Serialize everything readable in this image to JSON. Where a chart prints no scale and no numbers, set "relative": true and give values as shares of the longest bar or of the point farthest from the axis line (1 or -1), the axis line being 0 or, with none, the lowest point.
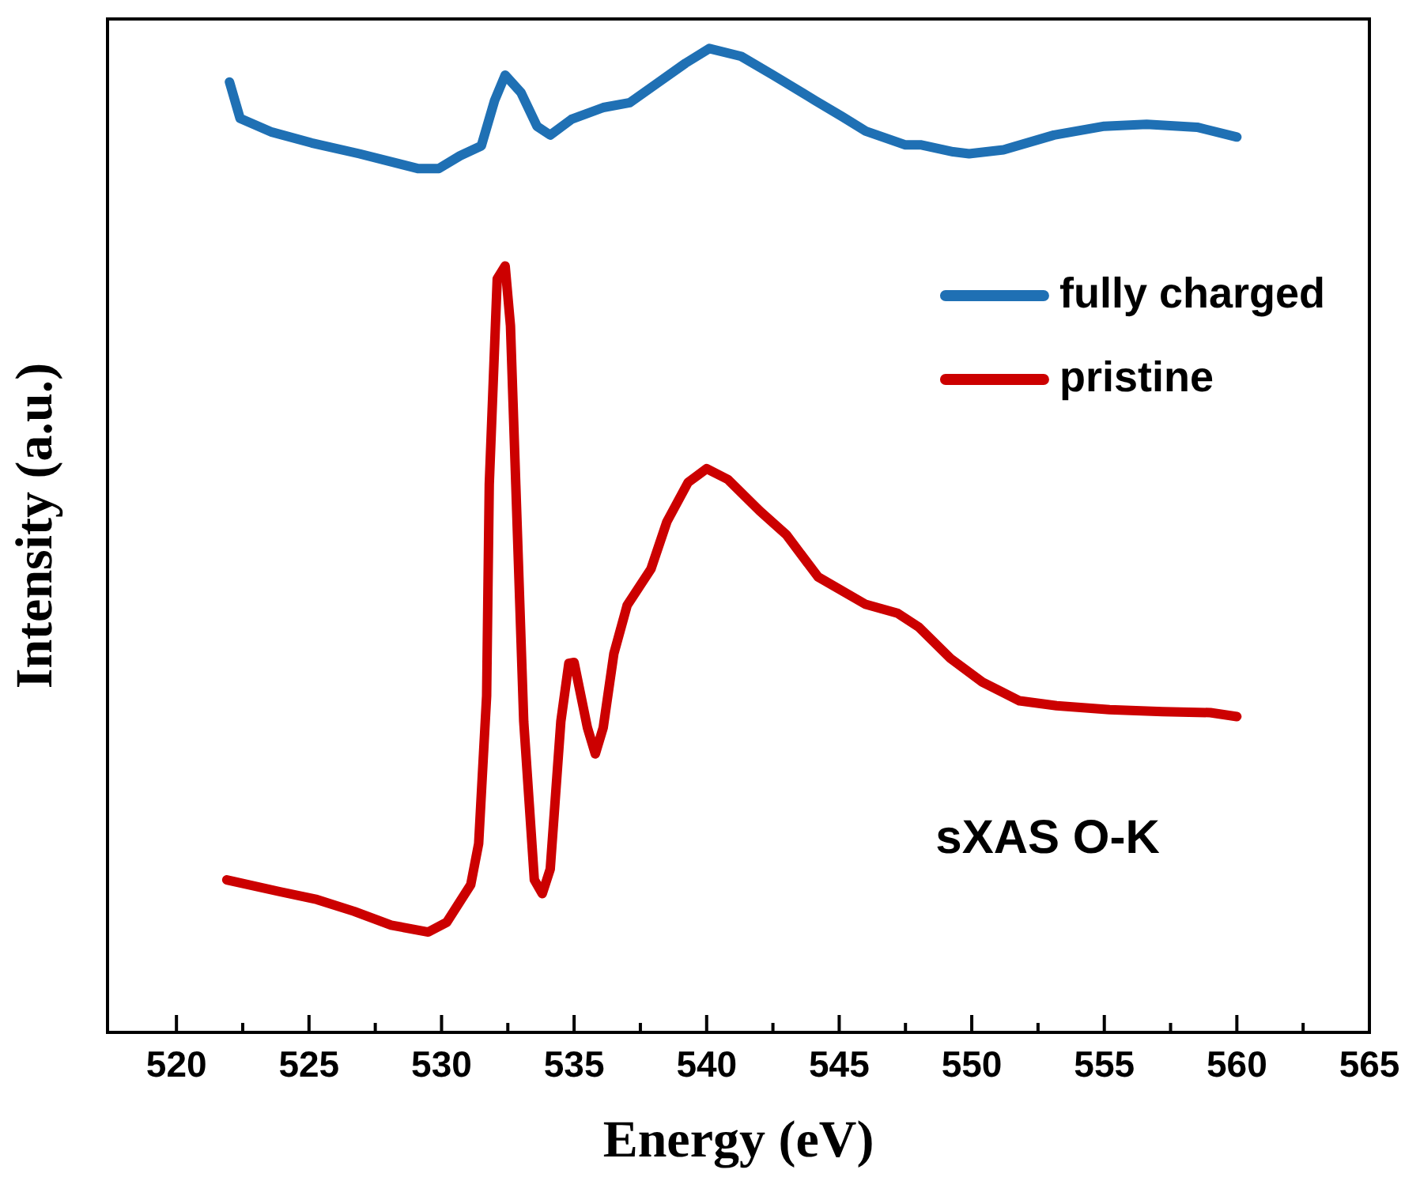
{
  "chart_data": {
    "type": "line",
    "xlabel": "Energy (eV)",
    "ylabel": "Intensity (a.u.)",
    "relative": true,
    "xlim": [
      517.4,
      565
    ],
    "xticks": [
      520,
      {
        "value": 522.5,
        "label": null
      },
      525,
      {
        "value": 527.5,
        "label": null
      },
      530,
      {
        "value": 532.5,
        "label": null
      },
      535,
      {
        "value": 537.5,
        "label": null
      },
      540,
      {
        "value": 542.5,
        "label": null
      },
      545,
      {
        "value": 547.5,
        "label": null
      },
      550,
      {
        "value": 552.5,
        "label": null
      },
      555,
      {
        "value": 557.5,
        "label": null
      },
      560,
      {
        "value": 562.5,
        "label": null
      },
      565
    ],
    "legend": "top right",
    "marker": "none",
    "line_style": "solid",
    "grid": false,
    "annotations": [
      "sXAS O-K"
    ],
    "series": [
      {
        "name": "fully charged",
        "color": "#1f70b4",
        "x": [
          522.0,
          522.4,
          523.6,
          525.1,
          526.9,
          529.1,
          529.9,
          530.7,
          531.5,
          532.0,
          532.4,
          533.0,
          533.6,
          534.1,
          534.9,
          536.1,
          537.1,
          538.1,
          539.2,
          540.1,
          541.3,
          542.5,
          544.1,
          545.1,
          546.0,
          547.5,
          548.1,
          549.3,
          549.9,
          551.2,
          553.1,
          555.0,
          556.6,
          558.5,
          560.0
        ],
        "values": [
          0.966,
          0.929,
          0.915,
          0.904,
          0.893,
          0.878,
          0.878,
          0.891,
          0.901,
          0.947,
          0.973,
          0.955,
          0.921,
          0.912,
          0.928,
          0.94,
          0.945,
          0.964,
          0.985,
          1.0,
          0.992,
          0.973,
          0.947,
          0.931,
          0.916,
          0.902,
          0.902,
          0.895,
          0.893,
          0.897,
          0.912,
          0.921,
          0.923,
          0.92,
          0.91
        ]
      },
      {
        "name": "pristine",
        "color": "#cc0000",
        "x": [
          521.9,
          523.9,
          525.3,
          526.7,
          528.1,
          529.5,
          530.2,
          531.1,
          531.4,
          531.7,
          531.8,
          532.1,
          532.4,
          532.6,
          532.8,
          533.1,
          533.5,
          533.8,
          534.1,
          534.5,
          534.8,
          535.0,
          535.5,
          535.8,
          536.1,
          536.5,
          537.0,
          537.9,
          538.5,
          539.3,
          540.0,
          540.8,
          542.0,
          543.0,
          544.2,
          546.0,
          547.2,
          548.0,
          549.2,
          550.4,
          551.8,
          553.2,
          555.2,
          557.2,
          559.0,
          560.0
        ],
        "values": [
          0.155,
          0.143,
          0.135,
          0.123,
          0.109,
          0.102,
          0.112,
          0.15,
          0.192,
          0.342,
          0.557,
          0.766,
          0.779,
          0.718,
          0.557,
          0.316,
          0.155,
          0.141,
          0.166,
          0.316,
          0.375,
          0.376,
          0.31,
          0.283,
          0.31,
          0.385,
          0.434,
          0.471,
          0.519,
          0.559,
          0.573,
          0.562,
          0.53,
          0.506,
          0.463,
          0.435,
          0.426,
          0.412,
          0.38,
          0.356,
          0.337,
          0.332,
          0.328,
          0.326,
          0.325,
          0.321
        ]
      }
    ]
  }
}
